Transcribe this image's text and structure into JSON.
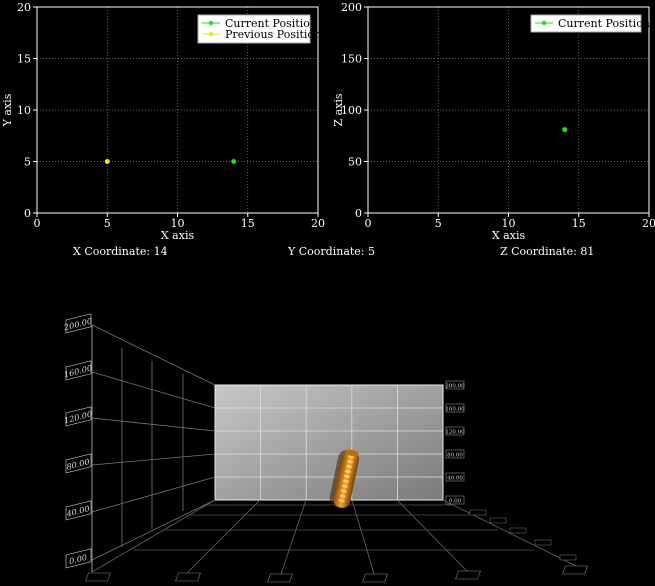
{
  "top_left_plot": {
    "x_label": "X axis",
    "y_label": "Y axis",
    "x_ticks": [
      "0",
      "5",
      "10",
      "15",
      "20"
    ],
    "y_ticks": [
      "0",
      "5",
      "10",
      "15",
      "20"
    ],
    "xlim": [
      0,
      20
    ],
    "ylim": [
      0,
      20
    ],
    "legend": [
      "Current Position",
      "Previous Position"
    ],
    "points": [
      {
        "series": "Current Position",
        "x": 14,
        "y": 5,
        "color": "#22dd22"
      },
      {
        "series": "Previous Position",
        "x": 5,
        "y": 5,
        "color": "#eeee00"
      }
    ]
  },
  "top_right_plot": {
    "x_label": "X axis",
    "y_label": "Z axis",
    "x_ticks": [
      "0",
      "5",
      "10",
      "15",
      "20"
    ],
    "y_ticks": [
      "0",
      "50",
      "100",
      "150",
      "200"
    ],
    "xlim": [
      0,
      20
    ],
    "ylim": [
      0,
      200
    ],
    "legend": [
      "Current Position"
    ],
    "points": [
      {
        "series": "Current Position",
        "x": 14,
        "y": 81,
        "color": "#22dd22"
      }
    ]
  },
  "coordinates": {
    "x_text": "X Coordinate: 14",
    "y_text": "Y Coordinate: 5",
    "z_text": "Z Coordinate: 81"
  },
  "scene3d": {
    "left_ticks": [
      "0.00",
      "40.00",
      "80.00",
      "120.00",
      "160.00",
      "200.00"
    ],
    "back_ticks": [
      "0.00",
      "40.00",
      "80.00",
      "120.00",
      "160.00",
      "200.00"
    ],
    "bar_color": "#e08a10"
  }
}
